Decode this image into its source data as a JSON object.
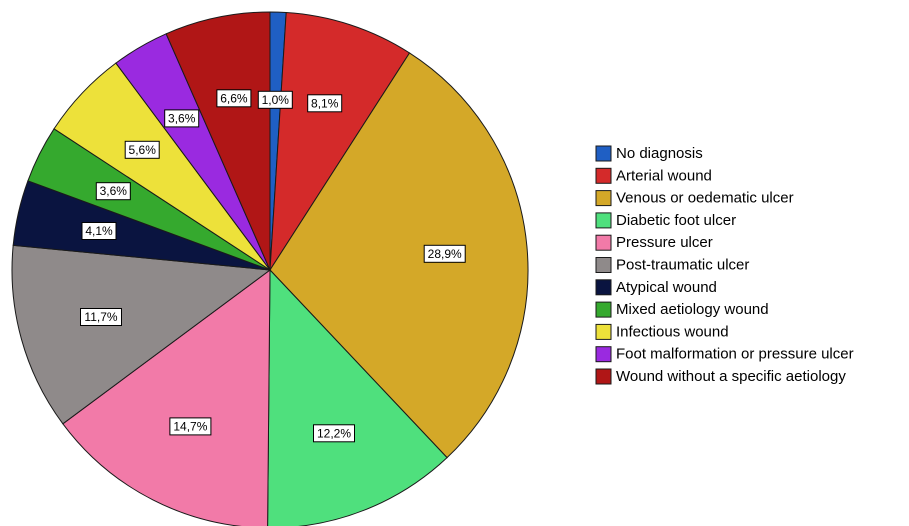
{
  "chart_data": {
    "type": "pie",
    "title": "",
    "slices": [
      {
        "name": "No diagnosis",
        "value": 1.0,
        "label": "1,0%",
        "color": "#1f5fc4"
      },
      {
        "name": "Arterial wound",
        "value": 8.1,
        "label": "8,1%",
        "color": "#d42a2a"
      },
      {
        "name": "Venous or oedematic ulcer",
        "value": 28.9,
        "label": "28,9%",
        "color": "#d4a828"
      },
      {
        "name": "Diabetic foot ulcer",
        "value": 12.2,
        "label": "12,2%",
        "color": "#4fe07d"
      },
      {
        "name": "Pressure ulcer",
        "value": 14.7,
        "label": "14,7%",
        "color": "#f27aa8"
      },
      {
        "name": "Post-traumatic ulcer",
        "value": 11.7,
        "label": "11,7%",
        "color": "#8f8a8a"
      },
      {
        "name": "Atypical wound",
        "value": 4.1,
        "label": "4,1%",
        "color": "#0a1440"
      },
      {
        "name": "Mixed aetiology wound",
        "value": 3.6,
        "label": "3,6%",
        "color": "#35a92e"
      },
      {
        "name": "Infectious wound",
        "value": 5.6,
        "label": "5,6%",
        "color": "#ede13a"
      },
      {
        "name": "Foot malformation or pressure ulcer",
        "value": 3.6,
        "label": "3,6%",
        "color": "#9a2ae0"
      },
      {
        "name": "Wound without a specific aetiology",
        "value": 6.6,
        "label": "6,6%",
        "color": "#b01616"
      }
    ],
    "legend_position": "right",
    "start_angle": "top, clockwise"
  }
}
